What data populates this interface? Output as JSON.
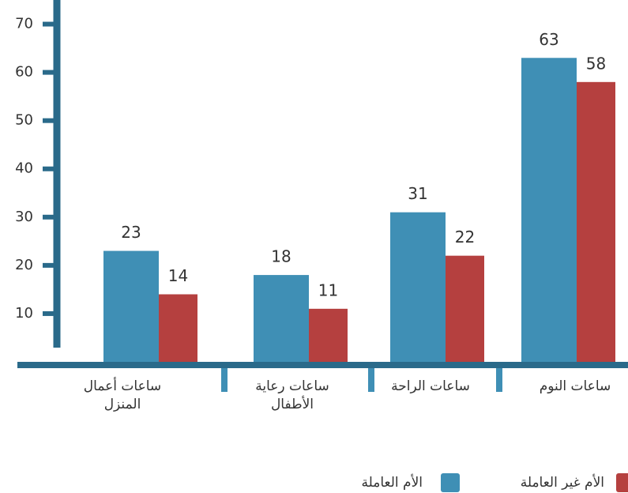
{
  "chart_data": {
    "type": "bar",
    "categories": [
      "ساعات أعمال المنزل",
      "ساعات رعاية الأطفال",
      "ساعات الراحة",
      "ساعات النوم"
    ],
    "series": [
      {
        "name": "الأم العاملة",
        "color": "#3f8fb5",
        "values": [
          23,
          18,
          31,
          63
        ]
      },
      {
        "name": "الأم غير العاملة",
        "color": "#b5403f",
        "values": [
          14,
          11,
          22,
          58
        ]
      }
    ],
    "ylim": [
      0,
      75
    ],
    "yticks": [
      10,
      20,
      30,
      40,
      50,
      60,
      70
    ]
  }
}
